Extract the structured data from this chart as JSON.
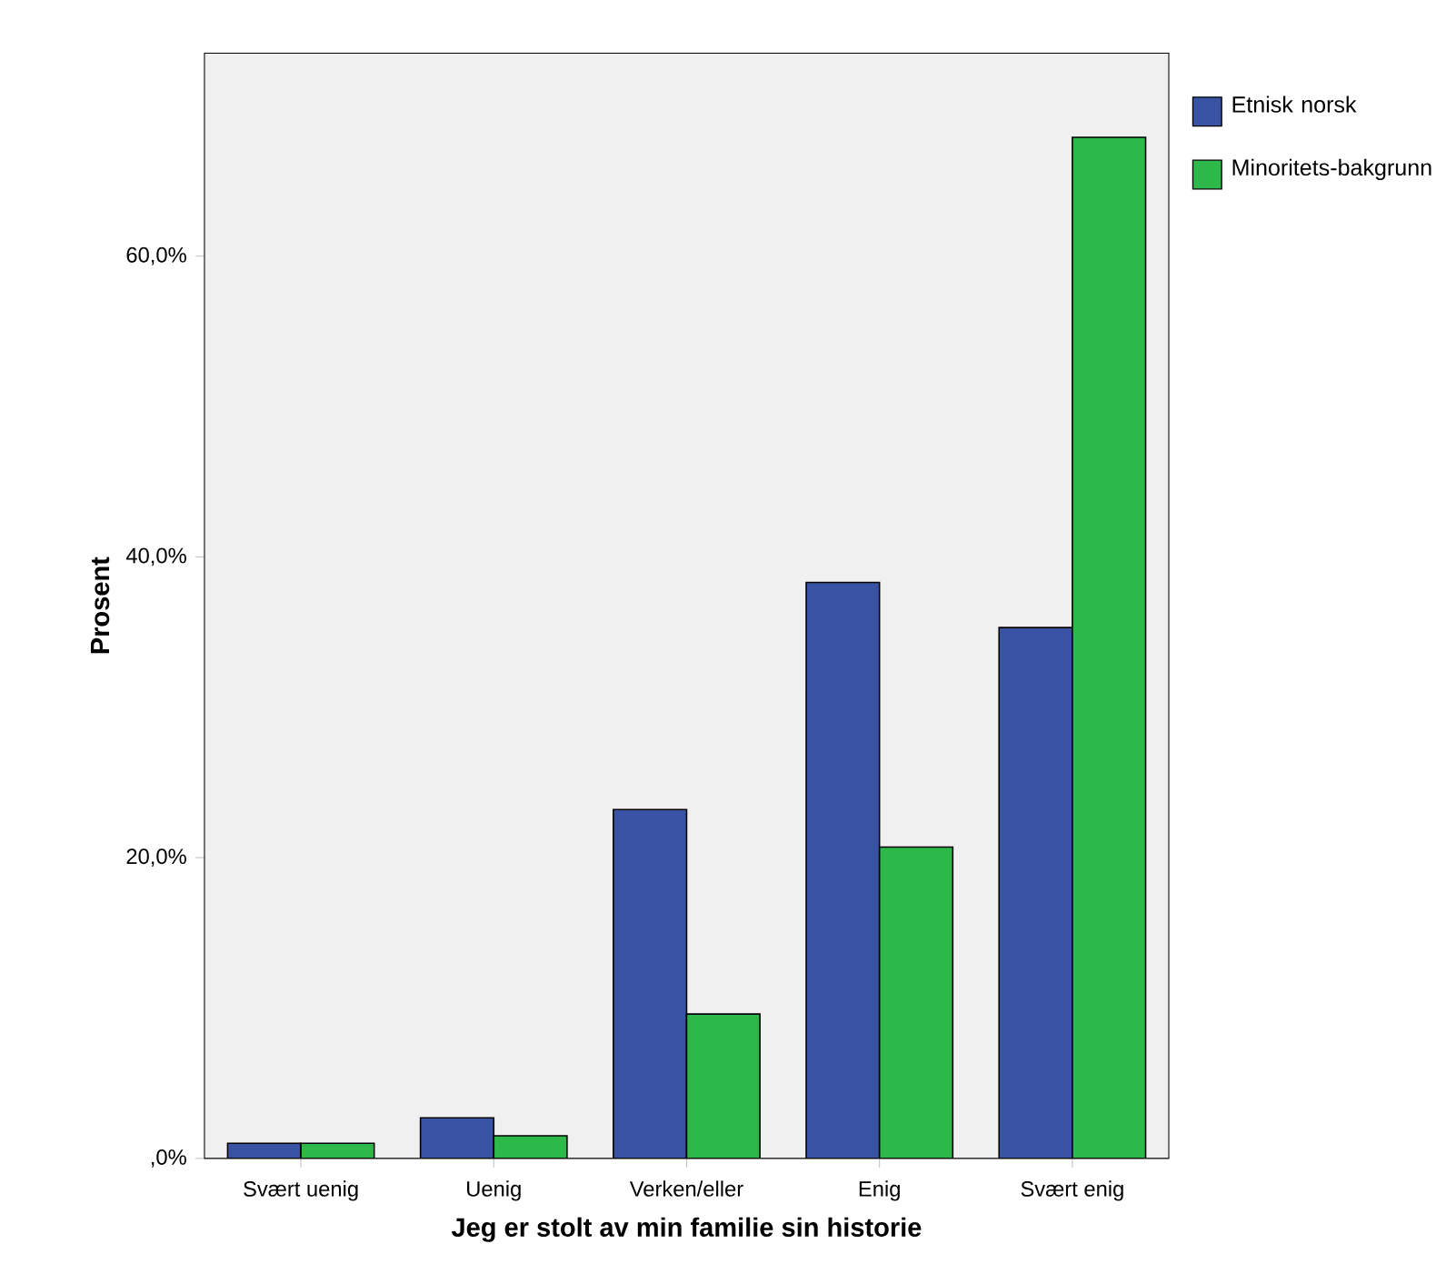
{
  "chart_data": {
    "type": "bar",
    "xlabel": "Jeg er stolt av min familie sin historie",
    "ylabel": "Prosent",
    "categories": [
      "Svært uenig",
      "Uenig",
      "Verken/eller",
      "Enig",
      "Svært enig"
    ],
    "series": [
      {
        "name": "Etnisk norsk",
        "color": "#3953a4",
        "values": [
          1.0,
          2.7,
          23.2,
          38.3,
          35.3
        ]
      },
      {
        "name": "Minoritets-bakgrunn",
        "color": "#2db84a",
        "values": [
          1.0,
          1.5,
          9.6,
          20.7,
          67.9
        ]
      }
    ],
    "ylim": [
      0,
      73.5
    ],
    "yticks": [
      {
        "value": 0,
        "label": ",0%"
      },
      {
        "value": 20,
        "label": "20,0%"
      },
      {
        "value": 40,
        "label": "40,0%"
      },
      {
        "value": 60,
        "label": "60,0%"
      }
    ],
    "legend": "top right"
  }
}
